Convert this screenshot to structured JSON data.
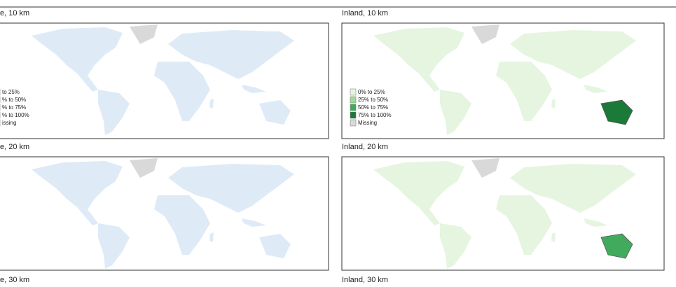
{
  "panels": [
    {
      "title": "e, 10 km"
    },
    {
      "title": "Inland, 10 km"
    },
    {
      "title": "e, 20 km"
    },
    {
      "title": "Inland, 20 km"
    },
    {
      "title": "e, 30 km"
    },
    {
      "title": "Inland, 30 km"
    }
  ],
  "legend_left": {
    "items": [
      {
        "label": "to 25%",
        "color": "#deebf7"
      },
      {
        "label": "% to 50%",
        "color": "#9ecae1"
      },
      {
        "label": "% to 75%",
        "color": "#4f8fc6"
      },
      {
        "label": "% to 100%",
        "color": "#1f5a99"
      },
      {
        "label": "issing",
        "color": "#d9d9d9"
      }
    ]
  },
  "legend_right": {
    "items": [
      {
        "label": "0% to 25%",
        "color": "#e5f5e0"
      },
      {
        "label": "25% to 50%",
        "color": "#a1d99b"
      },
      {
        "label": "50% to 75%",
        "color": "#41ab5d"
      },
      {
        "label": "75% to 100%",
        "color": "#1b7a37"
      },
      {
        "label": "Missing",
        "color": "#d9d9d9"
      }
    ]
  }
}
